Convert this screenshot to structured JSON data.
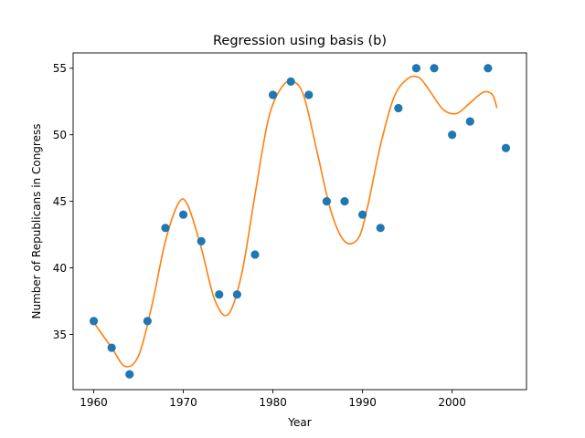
{
  "chart_data": {
    "type": "scatter",
    "title": "Regression using basis (b)",
    "xlabel": "Year",
    "ylabel": "Number of Republicans in Congress",
    "xlim": [
      1957.7,
      2008.3
    ],
    "ylim": [
      30.85,
      56.15
    ],
    "grid": false,
    "legend": "none",
    "xticks": [
      1960,
      1970,
      1980,
      1990,
      2000
    ],
    "yticks": [
      35,
      40,
      45,
      50,
      55
    ],
    "series": [
      {
        "kind": "scatter",
        "color": "#1f77b4",
        "x": [
          1960,
          1962,
          1964,
          1966,
          1968,
          1970,
          1972,
          1974,
          1976,
          1978,
          1980,
          1982,
          1984,
          1986,
          1988,
          1990,
          1992,
          1994,
          1996,
          1998,
          2000,
          2002,
          2004,
          2006
        ],
        "y": [
          36,
          34,
          32,
          36,
          43,
          44,
          42,
          38,
          38,
          41,
          53,
          54,
          53,
          45,
          45,
          44,
          43,
          52,
          55,
          55,
          50,
          51,
          55,
          49
        ]
      },
      {
        "kind": "line",
        "color": "#ff7f0e",
        "x": [
          1960,
          1962,
          1963.5,
          1965,
          1966.5,
          1968,
          1969.5,
          1970.5,
          1972,
          1973.5,
          1975,
          1976.5,
          1978,
          1979.5,
          1981,
          1982.3,
          1983.5,
          1985,
          1986.5,
          1988,
          1989.5,
          1990.5,
          1992,
          1993.5,
          1995,
          1996.3,
          1997.5,
          1999,
          2000.5,
          2002,
          2003.5,
          2004.5,
          2005
        ],
        "y": [
          35.9,
          34.0,
          32.6,
          33.4,
          37.2,
          42.0,
          44.9,
          44.7,
          41.5,
          37.6,
          36.5,
          39.5,
          45.5,
          51.2,
          53.6,
          54.0,
          52.8,
          48.5,
          44.2,
          42.0,
          42.2,
          44.4,
          49.2,
          52.8,
          54.2,
          54.3,
          53.3,
          51.9,
          51.6,
          52.4,
          53.2,
          53.0,
          52.0
        ]
      }
    ]
  }
}
